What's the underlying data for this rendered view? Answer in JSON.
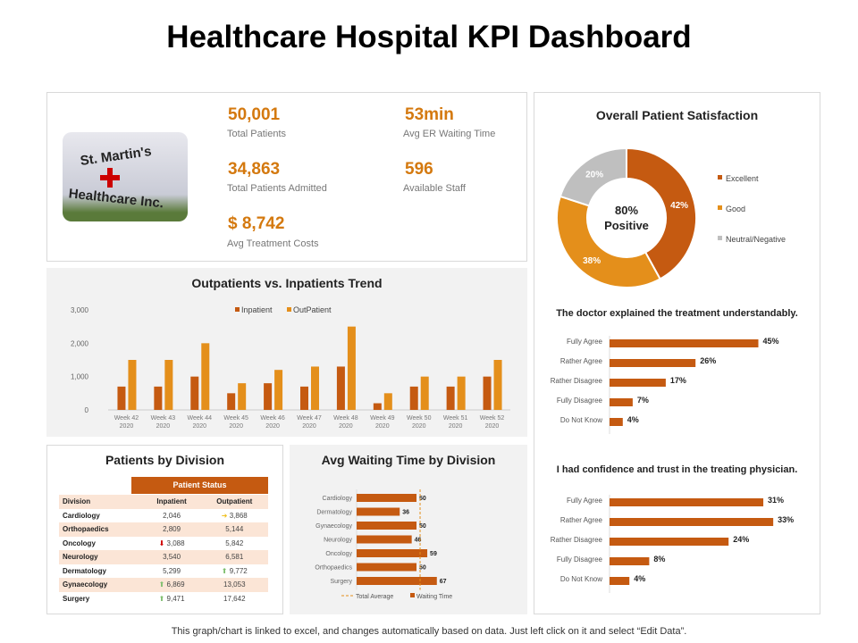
{
  "title": "Healthcare Hospital KPI Dashboard",
  "logo_text": [
    "St. Martin's",
    "Healthcare Inc."
  ],
  "kpis": [
    {
      "value": "50,001",
      "label": "Total Patients"
    },
    {
      "value": "53min",
      "label": "Avg ER Waiting Time"
    },
    {
      "value": "34,863",
      "label": "Total Patients Admitted"
    },
    {
      "value": "596",
      "label": "Available Staff"
    },
    {
      "value": "$ 8,742",
      "label": "Avg Treatment Costs"
    }
  ],
  "colors": {
    "dark": "#c55a11",
    "light": "#e48f1b",
    "gray": "#bfbfbf",
    "peach": "#fbe5d6"
  },
  "chart_data": [
    {
      "type": "bar",
      "title": "Outpatients vs. Inpatients Trend",
      "categories": [
        "Week 42 2020",
        "Week 43 2020",
        "Week 44 2020",
        "Week 45 2020",
        "Week 46 2020",
        "Week 47 2020",
        "Week 48 2020",
        "Week 49 2020",
        "Week 50 2020",
        "Week 51 2020",
        "Week 52 2020"
      ],
      "series": [
        {
          "name": "Inpatient",
          "values": [
            700,
            700,
            1000,
            500,
            800,
            700,
            1300,
            200,
            700,
            700,
            1000
          ]
        },
        {
          "name": "OutPatient",
          "values": [
            1500,
            1500,
            2000,
            800,
            1200,
            1300,
            2500,
            500,
            1000,
            1000,
            1500
          ]
        }
      ],
      "yticks": [
        "0",
        "1,000",
        "2,000",
        "3,000"
      ],
      "ylim": [
        0,
        3000
      ],
      "legend": "top"
    },
    {
      "type": "bar",
      "title": "Avg Waiting Time by Division",
      "orientation": "horizontal",
      "categories": [
        "Cardiology",
        "Dermatology",
        "Gynaecology",
        "Neurology",
        "Oncology",
        "Orthopaedics",
        "Surgery"
      ],
      "values": [
        50,
        36,
        50,
        46,
        59,
        50,
        67
      ],
      "average": 53,
      "legend": [
        "Total Average",
        "Waiting Time"
      ]
    },
    {
      "type": "pie",
      "title": "Overall Patient Satisfaction",
      "center_label": [
        "80%",
        "Positive"
      ],
      "slices": [
        {
          "name": "Excellent",
          "value": 42,
          "label": "42%"
        },
        {
          "name": "Good",
          "value": 38,
          "label": "38%"
        },
        {
          "name": "Neutral/Negative",
          "value": 20,
          "label": "20%"
        }
      ]
    },
    {
      "type": "bar",
      "orientation": "horizontal",
      "title": "The doctor explained the treatment understandably.",
      "categories": [
        "Fully Agree",
        "Rather Agree",
        "Rather Disagree",
        "Fully Disagree",
        "Do Not Know"
      ],
      "values": [
        45,
        26,
        17,
        7,
        4
      ]
    },
    {
      "type": "bar",
      "orientation": "horizontal",
      "title": "I had confidence and trust in the treating physician.",
      "categories": [
        "Fully Agree",
        "Rather Agree",
        "Rather Disagree",
        "Fully Disagree",
        "Do Not Know"
      ],
      "values": [
        31,
        33,
        24,
        8,
        4
      ]
    }
  ],
  "division": {
    "title": "Patients by Division",
    "group_header": "Patient Status",
    "headers": [
      "Division",
      "Inpatient",
      "Outpatient"
    ],
    "rows": [
      {
        "division": "Cardiology",
        "inpatient": "2,046",
        "in_icon": "",
        "outpatient": "3,868",
        "out_icon": "arrow-right"
      },
      {
        "division": "Orthopaedics",
        "inpatient": "2,809",
        "in_icon": "",
        "outpatient": "5,144",
        "out_icon": ""
      },
      {
        "division": "Oncology",
        "inpatient": "3,088",
        "in_icon": "arrow-down",
        "outpatient": "5,842",
        "out_icon": ""
      },
      {
        "division": "Neurology",
        "inpatient": "3,540",
        "in_icon": "",
        "outpatient": "6,581",
        "out_icon": ""
      },
      {
        "division": "Dermatology",
        "inpatient": "5,299",
        "in_icon": "",
        "outpatient": "9,772",
        "out_icon": "arrow-up"
      },
      {
        "division": "Gynaecology",
        "inpatient": "6,869",
        "in_icon": "arrow-up",
        "outpatient": "13,053",
        "out_icon": ""
      },
      {
        "division": "Surgery",
        "inpatient": "9,471",
        "in_icon": "arrow-up",
        "outpatient": "17,642",
        "out_icon": ""
      }
    ]
  },
  "footer": "This graph/chart is linked to excel, and changes automatically based on data. Just left click on it and select “Edit Data”."
}
